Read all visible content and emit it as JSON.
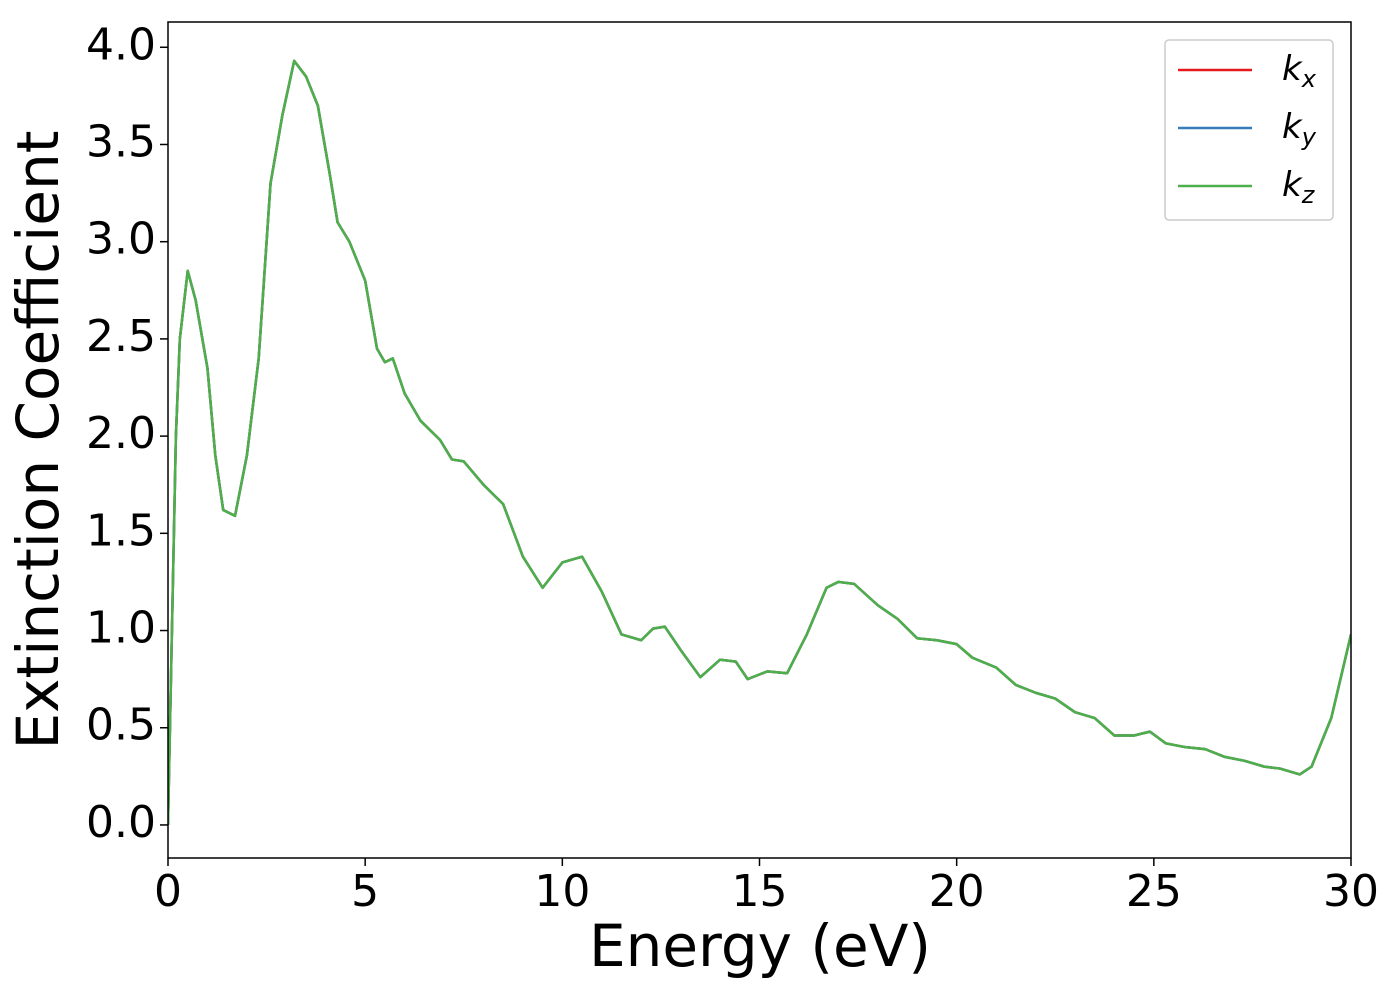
{
  "chart_data": {
    "type": "line",
    "x_label": "Energy (eV)",
    "y_label": "Extinction Coefficient",
    "x": [
      0,
      0.1,
      0.2,
      0.3,
      0.5,
      0.7,
      1.0,
      1.2,
      1.4,
      1.7,
      2.0,
      2.3,
      2.6,
      2.9,
      3.2,
      3.5,
      3.8,
      4.1,
      4.3,
      4.6,
      5.0,
      5.3,
      5.5,
      5.7,
      6.0,
      6.4,
      6.9,
      7.2,
      7.5,
      8.0,
      8.5,
      9.0,
      9.5,
      10.0,
      10.5,
      11.0,
      11.5,
      12.0,
      12.3,
      12.6,
      13.0,
      13.5,
      14.0,
      14.4,
      14.7,
      15.2,
      15.7,
      16.2,
      16.7,
      17.0,
      17.4,
      18.0,
      18.5,
      19.0,
      19.5,
      20.0,
      20.4,
      21.0,
      21.5,
      22.0,
      22.5,
      23.0,
      23.5,
      24.0,
      24.5,
      24.9,
      25.3,
      25.8,
      26.3,
      26.8,
      27.3,
      27.8,
      28.2,
      28.7,
      29.0,
      29.5,
      30.0
    ],
    "series": [
      {
        "name": "kx",
        "color": "#e41a1c",
        "values": [
          0,
          1.0,
          2.0,
          2.5,
          2.85,
          2.7,
          2.35,
          1.9,
          1.62,
          1.59,
          1.9,
          2.4,
          3.3,
          3.65,
          3.93,
          3.85,
          3.7,
          3.35,
          3.1,
          3.0,
          2.8,
          2.45,
          2.38,
          2.4,
          2.22,
          2.08,
          1.98,
          1.88,
          1.87,
          1.75,
          1.65,
          1.38,
          1.22,
          1.35,
          1.38,
          1.2,
          0.98,
          0.95,
          1.01,
          1.02,
          0.9,
          0.76,
          0.85,
          0.84,
          0.75,
          0.79,
          0.78,
          0.98,
          1.22,
          1.25,
          1.24,
          1.13,
          1.06,
          0.96,
          0.95,
          0.93,
          0.86,
          0.81,
          0.72,
          0.68,
          0.65,
          0.58,
          0.55,
          0.46,
          0.46,
          0.48,
          0.42,
          0.4,
          0.39,
          0.35,
          0.33,
          0.3,
          0.29,
          0.26,
          0.3,
          0.55,
          0.98
        ]
      },
      {
        "name": "ky",
        "color": "#377eb8",
        "values": [
          0,
          1.0,
          2.0,
          2.5,
          2.85,
          2.7,
          2.35,
          1.9,
          1.62,
          1.59,
          1.9,
          2.4,
          3.3,
          3.65,
          3.93,
          3.85,
          3.7,
          3.35,
          3.1,
          3.0,
          2.8,
          2.45,
          2.38,
          2.4,
          2.22,
          2.08,
          1.98,
          1.88,
          1.87,
          1.75,
          1.65,
          1.38,
          1.22,
          1.35,
          1.38,
          1.2,
          0.98,
          0.95,
          1.01,
          1.02,
          0.9,
          0.76,
          0.85,
          0.84,
          0.75,
          0.79,
          0.78,
          0.98,
          1.22,
          1.25,
          1.24,
          1.13,
          1.06,
          0.96,
          0.95,
          0.93,
          0.86,
          0.81,
          0.72,
          0.68,
          0.65,
          0.58,
          0.55,
          0.46,
          0.46,
          0.48,
          0.42,
          0.4,
          0.39,
          0.35,
          0.33,
          0.3,
          0.29,
          0.26,
          0.3,
          0.55,
          0.98
        ]
      },
      {
        "name": "kz",
        "color": "#4daf4a",
        "values": [
          0,
          1.0,
          2.0,
          2.5,
          2.85,
          2.7,
          2.35,
          1.9,
          1.62,
          1.59,
          1.9,
          2.4,
          3.3,
          3.65,
          3.93,
          3.85,
          3.7,
          3.35,
          3.1,
          3.0,
          2.8,
          2.45,
          2.38,
          2.4,
          2.22,
          2.08,
          1.98,
          1.88,
          1.87,
          1.75,
          1.65,
          1.38,
          1.22,
          1.35,
          1.38,
          1.2,
          0.98,
          0.95,
          1.01,
          1.02,
          0.9,
          0.76,
          0.85,
          0.84,
          0.75,
          0.79,
          0.78,
          0.98,
          1.22,
          1.25,
          1.24,
          1.13,
          1.06,
          0.96,
          0.95,
          0.93,
          0.86,
          0.81,
          0.72,
          0.68,
          0.65,
          0.58,
          0.55,
          0.46,
          0.46,
          0.48,
          0.42,
          0.4,
          0.39,
          0.35,
          0.33,
          0.3,
          0.29,
          0.26,
          0.3,
          0.55,
          0.98
        ]
      }
    ],
    "xlim": [
      0,
      30
    ],
    "xticks": [
      0,
      5,
      10,
      15,
      20,
      25,
      30
    ],
    "ylim": [
      -0.17,
      4.13
    ],
    "yticks": [
      {
        "value": 0,
        "label": "0.0"
      },
      {
        "value": 0.5,
        "label": "0.5"
      },
      {
        "value": 1,
        "label": "1.0"
      },
      {
        "value": 1.5,
        "label": "1.5"
      },
      {
        "value": 2,
        "label": "2.0"
      },
      {
        "value": 2.5,
        "label": "2.5"
      },
      {
        "value": 3,
        "label": "3.0"
      },
      {
        "value": 3.5,
        "label": "3.5"
      },
      {
        "value": 4,
        "label": "4.0"
      }
    ],
    "grid": false,
    "legend": "upper right"
  }
}
